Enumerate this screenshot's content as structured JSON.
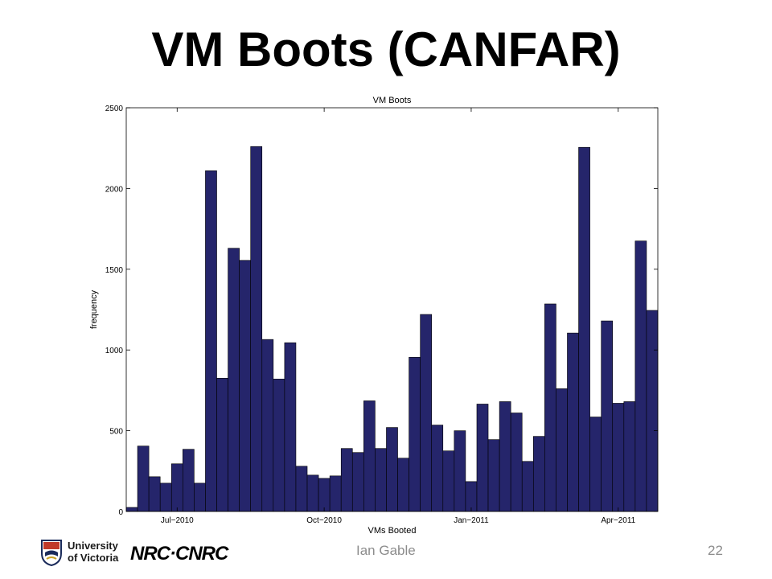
{
  "slide": {
    "title": "VM Boots (CANFAR)",
    "author": "Ian Gable",
    "page_number": "22",
    "logos": {
      "uvic_line1": "University",
      "uvic_line2": "of Victoria",
      "nrc": "NRC·CNRC"
    }
  },
  "chart_data": {
    "type": "bar",
    "title": "VM Boots",
    "xlabel": "VMs Booted",
    "ylabel": "frequency",
    "ylim": [
      0,
      2500
    ],
    "yticks": [
      0,
      500,
      1000,
      1500,
      2000,
      2500
    ],
    "xtick_labels": [
      {
        "label": "Jul−2010",
        "bin_index": 4.5
      },
      {
        "label": "Oct−2010",
        "bin_index": 17.5
      },
      {
        "label": "Jan−2011",
        "bin_index": 30.5
      },
      {
        "label": "Apr−2011",
        "bin_index": 43.5
      }
    ],
    "bar_color": "#25256b",
    "bar_edge_color": "#000000",
    "grid": false,
    "values": [
      25,
      405,
      215,
      175,
      295,
      385,
      175,
      2110,
      825,
      1630,
      1555,
      2260,
      1065,
      820,
      1045,
      280,
      225,
      205,
      220,
      390,
      365,
      685,
      390,
      520,
      330,
      955,
      1220,
      535,
      375,
      500,
      185,
      665,
      445,
      680,
      610,
      310,
      465,
      1285,
      760,
      1105,
      2255,
      585,
      1180,
      670,
      680,
      1675,
      1245
    ]
  }
}
